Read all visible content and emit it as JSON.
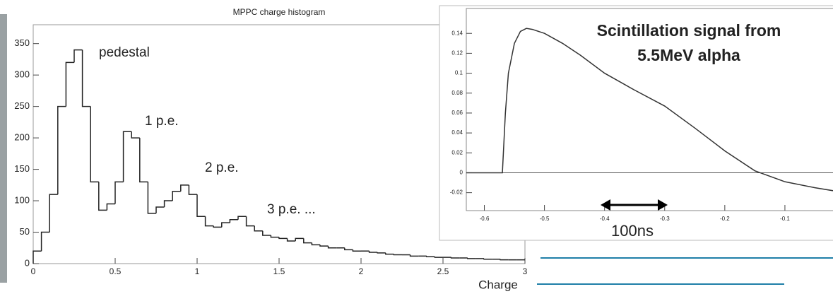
{
  "chart_data": [
    {
      "type": "histogram",
      "title": "MPPC charge histogram",
      "x_label": "Charge",
      "bins": [
        0,
        0.05,
        0.1,
        0.15,
        0.2,
        0.25,
        0.3,
        0.35,
        0.4,
        0.45,
        0.5,
        0.55,
        0.6,
        0.65,
        0.7,
        0.75,
        0.8,
        0.85,
        0.9,
        0.95,
        1,
        1.05,
        1.1,
        1.15,
        1.2,
        1.25,
        1.3,
        1.35,
        1.4,
        1.45,
        1.5,
        1.55,
        1.6,
        1.65,
        1.7,
        1.75,
        1.8,
        1.85,
        1.9,
        1.95,
        2,
        2.05,
        2.1,
        2.15,
        2.2,
        2.25,
        2.3,
        2.35,
        2.4,
        2.45,
        2.5,
        2.55,
        2.6,
        2.65,
        2.7,
        2.75,
        2.8,
        2.85,
        2.9,
        2.95,
        3
      ],
      "counts": [
        20,
        50,
        110,
        250,
        320,
        340,
        250,
        130,
        85,
        95,
        130,
        210,
        200,
        130,
        80,
        90,
        100,
        115,
        125,
        110,
        75,
        60,
        58,
        65,
        70,
        75,
        60,
        52,
        45,
        42,
        40,
        36,
        40,
        33,
        30,
        28,
        25,
        25,
        22,
        20,
        20,
        18,
        17,
        15,
        14,
        14,
        12,
        12,
        11,
        10,
        10,
        9,
        9,
        8,
        8,
        7,
        7,
        6,
        6,
        6
      ],
      "color": "#222222",
      "xlim": [
        0,
        3
      ],
      "xticks": [
        0,
        0.5,
        1,
        1.5,
        2,
        2.5,
        3
      ],
      "ylim": [
        0,
        380
      ],
      "yticks": [
        0,
        50,
        100,
        150,
        200,
        250,
        300,
        350
      ],
      "annotations": [
        "pedestal",
        "1 p.e.",
        "2 p.e.",
        "3 p.e.  ..."
      ]
    },
    {
      "type": "line",
      "x": [
        -0.63,
        -0.6,
        -0.57,
        -0.565,
        -0.56,
        -0.55,
        -0.54,
        -0.53,
        -0.52,
        -0.5,
        -0.47,
        -0.44,
        -0.4,
        -0.35,
        -0.3,
        -0.25,
        -0.2,
        -0.15,
        -0.1,
        -0.05,
        -0.02
      ],
      "values": [
        0,
        0,
        0,
        0.06,
        0.1,
        0.13,
        0.142,
        0.145,
        0.144,
        0.14,
        0.13,
        0.118,
        0.1,
        0.083,
        0.067,
        0.045,
        0.022,
        0.002,
        -0.009,
        -0.015,
        -0.018
      ],
      "color": "#333333",
      "xlim": [
        -0.63,
        -0.02
      ],
      "xticks": [
        -0.6,
        -0.5,
        -0.4,
        -0.3,
        -0.2,
        -0.1
      ],
      "ylim": [
        -0.038,
        0.165
      ],
      "yticks": [
        -0.02,
        0,
        0.02,
        0.04,
        0.06,
        0.08,
        0.1,
        0.12,
        0.14
      ],
      "annotations": [
        "Scintillation signal from",
        "5.5MeV alpha",
        "100ns"
      ]
    }
  ]
}
